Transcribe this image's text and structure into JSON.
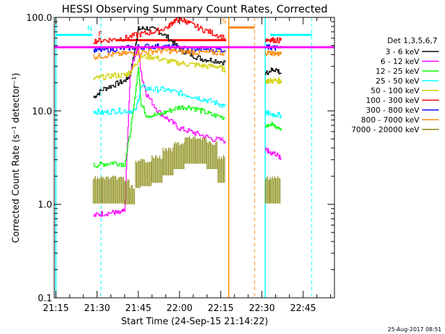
{
  "chart_data": {
    "type": "line",
    "title": "HESSI Observing Summary Count Rates, Corrected",
    "xlabel": "Start Time (24-Sep-15 21:14:22)",
    "ylabel": "Corrected Count Rate (s⁻¹ detector⁻¹)",
    "y_scale": "log",
    "ylim": [
      0.1,
      100
    ],
    "x_unit": "minutes of day",
    "xlim": [
      1274.4,
      1376.4
    ],
    "x_ticks": [
      {
        "label": "21:15",
        "value": 1275
      },
      {
        "label": "21:30",
        "value": 1290
      },
      {
        "label": "21:45",
        "value": 1305
      },
      {
        "label": "22:00",
        "value": 1320
      },
      {
        "label": "22:15",
        "value": 1335
      },
      {
        "label": "22:30",
        "value": 1350
      },
      {
        "label": "22:45",
        "value": 1365
      }
    ],
    "y_ticks": [
      {
        "label": "100.0",
        "value": 100
      },
      {
        "label": "10.0",
        "value": 10
      },
      {
        "label": "1.0",
        "value": 1
      },
      {
        "label": "0.1",
        "value": 0.1
      }
    ],
    "legend_title": "Det 1,3,5,6,7",
    "legend_position": "right",
    "timestamp": "25-Aug-2017 08:51",
    "series": [
      {
        "name": "3 - 6 keV",
        "color": "#000000",
        "x": [
          1288.6,
          1292,
          1296,
          1300,
          1302,
          1304,
          1305,
          1308,
          1312,
          1316,
          1320,
          1324,
          1328,
          1332,
          1336.6
        ],
        "y": [
          14,
          17,
          19,
          21,
          24,
          50,
          75,
          77,
          72,
          60,
          46,
          40,
          36,
          35,
          33
        ]
      },
      {
        "name": "6 - 12 keV",
        "color": "#ff00ff",
        "x": [
          1288.6,
          1292,
          1296,
          1298,
          1300,
          1302,
          1304,
          1305,
          1306,
          1308,
          1312,
          1316,
          1320,
          1324,
          1328,
          1332,
          1336.6
        ],
        "y": [
          0.75,
          0.8,
          0.82,
          0.8,
          0.85,
          25,
          42,
          48,
          25,
          15,
          10,
          8,
          6.5,
          6,
          5.5,
          5,
          4.8
        ]
      },
      {
        "name": "12 - 25 keV",
        "color": "#00ff00",
        "x": [
          1288.6,
          1292,
          1296,
          1300,
          1303,
          1305,
          1306,
          1308,
          1312,
          1316,
          1320,
          1324,
          1328,
          1332,
          1336.6
        ],
        "y": [
          2.6,
          2.7,
          2.8,
          2.7,
          9,
          30,
          12,
          9,
          9,
          10,
          11,
          11,
          10,
          9,
          8.5
        ]
      },
      {
        "name": "25 - 50 keV",
        "color": "#00ffff",
        "x": [
          1288.6,
          1292,
          1296,
          1300,
          1304,
          1306,
          1310,
          1314,
          1318,
          1322,
          1326,
          1330,
          1334,
          1336.6
        ],
        "y": [
          10,
          9.5,
          10,
          10,
          10,
          18,
          17,
          17,
          16,
          15,
          14,
          13,
          12,
          11
        ]
      },
      {
        "name": "50 - 100 keV",
        "color": "#d0d000",
        "x": [
          1288.6,
          1292,
          1296,
          1300,
          1302,
          1304,
          1306,
          1310,
          1314,
          1318,
          1322,
          1326,
          1330,
          1334,
          1336.6
        ],
        "y": [
          22,
          23,
          24,
          24,
          26,
          32,
          38,
          38,
          35,
          33,
          32,
          31,
          30,
          30,
          27
        ]
      },
      {
        "name": "100 - 300 keV",
        "color": "#ff0000",
        "x": [
          1288.6,
          1292,
          1296,
          1300,
          1304,
          1308,
          1312,
          1316,
          1318,
          1320,
          1322,
          1324,
          1328,
          1332,
          1336.6
        ],
        "y": [
          56,
          57,
          58,
          60,
          65,
          68,
          72,
          80,
          92,
          95,
          92,
          85,
          75,
          68,
          60
        ]
      },
      {
        "name": "300 - 800 keV",
        "color": "#0000ff",
        "x": [
          1288.6,
          1292,
          1296,
          1300,
          1304,
          1308,
          1312,
          1316,
          1320,
          1324,
          1328,
          1332,
          1336.6
        ],
        "y": [
          44,
          45,
          46,
          47,
          48,
          49,
          49,
          48,
          47,
          46,
          46,
          45,
          45
        ]
      },
      {
        "name": "800 - 7000 keV",
        "color": "#ff8800",
        "x": [
          1288.6,
          1292,
          1296,
          1300,
          1304,
          1308,
          1312,
          1316,
          1320,
          1324,
          1328,
          1332,
          1336.6
        ],
        "y": [
          38,
          39,
          40,
          41,
          42,
          43,
          44,
          44,
          43,
          43,
          42,
          42,
          42
        ]
      },
      {
        "name": "7000 - 20000 keV",
        "color": "#808000",
        "x": [
          1288.6,
          1292,
          1296,
          1300,
          1302,
          1304,
          1306,
          1310,
          1314,
          1318,
          1322,
          1326,
          1330,
          1334,
          1336.6
        ],
        "y": [
          1.5,
          1.5,
          1.5,
          1.4,
          1.2,
          2.2,
          2.3,
          2.5,
          3,
          3.5,
          4,
          4,
          3.5,
          2.5,
          2
        ]
      }
    ],
    "series_segment2": [
      {
        "name": "3 - 6 keV",
        "x": [
          1351.2,
          1353,
          1355,
          1357
        ],
        "y": [
          25,
          27,
          28,
          25
        ]
      },
      {
        "name": "6 - 12 keV",
        "x": [
          1351.2,
          1353,
          1355,
          1357
        ],
        "y": [
          3.8,
          3.6,
          3.5,
          3.0
        ]
      },
      {
        "name": "12 - 25 keV",
        "x": [
          1351.2,
          1353,
          1355,
          1357
        ],
        "y": [
          7,
          7.2,
          6.8,
          6.5
        ]
      },
      {
        "name": "25 - 50 keV",
        "x": [
          1351.2,
          1353,
          1355,
          1357
        ],
        "y": [
          9.5,
          9.3,
          9.1,
          9
        ]
      },
      {
        "name": "50 - 100 keV",
        "x": [
          1351.2,
          1353,
          1355,
          1357
        ],
        "y": [
          21,
          21,
          21,
          21
        ]
      },
      {
        "name": "100 - 300 keV",
        "x": [
          1351.2,
          1353,
          1355,
          1357
        ],
        "y": [
          58,
          58,
          57,
          57
        ]
      },
      {
        "name": "300 - 800 keV",
        "x": [
          1351.2,
          1353,
          1355,
          1357
        ],
        "y": [
          48,
          48,
          47,
          47
        ]
      },
      {
        "name": "800 - 7000 keV",
        "x": [
          1351.2,
          1353,
          1355,
          1357
        ],
        "y": [
          42,
          42,
          41,
          41
        ]
      },
      {
        "name": "7000 - 20000 keV",
        "x": [
          1351.2,
          1353,
          1355,
          1357
        ],
        "y": [
          1.5,
          1.5,
          1.5,
          1.5
        ]
      }
    ],
    "threshold": {
      "color": "#ff00ff",
      "y": 48
    },
    "intervals": [
      {
        "label": "N",
        "color": "#00ffff",
        "start": 1275.0,
        "end": 1288.2,
        "y": 65
      },
      {
        "label": "F",
        "color": "#ff0000",
        "start": 1297.0,
        "end": 1337.0,
        "y": 57
      },
      {
        "label": "S",
        "color": "#ff8800",
        "start": 1338.0,
        "end": 1347.3,
        "y": 78
      },
      {
        "label": "",
        "color": "#00ffff",
        "start": 1353.0,
        "end": 1368.2,
        "y": 65
      }
    ],
    "vlines": [
      {
        "color": "#00ffff",
        "x": 1275.0,
        "dashed": false
      },
      {
        "color": "#00ffff",
        "x": 1291.4,
        "dashed": true
      },
      {
        "color": "#ff8800",
        "x": 1337.9,
        "dashed": false
      },
      {
        "color": "#ff8800",
        "x": 1347.3,
        "dashed": true
      },
      {
        "color": "#00ffff",
        "x": 1351.2,
        "dashed": false
      },
      {
        "color": "#00ffff",
        "x": 1368.1,
        "dashed": true
      }
    ]
  }
}
